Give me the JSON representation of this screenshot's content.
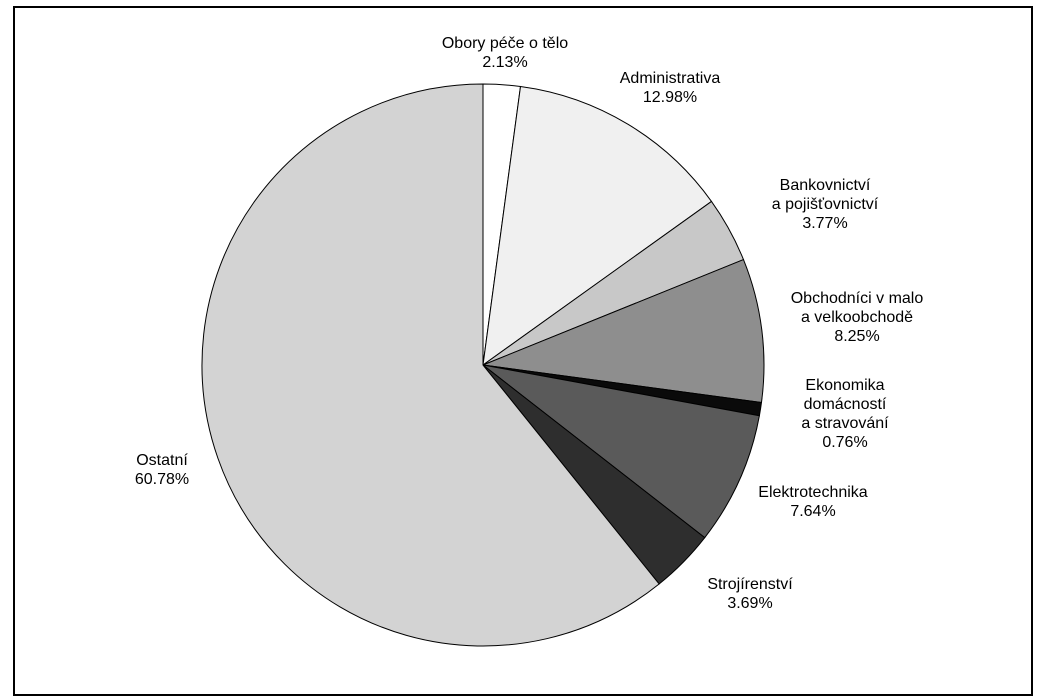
{
  "chart_data": {
    "type": "pie",
    "title": "",
    "start_angle_deg": 0,
    "direction": "clockwise",
    "legend": "none",
    "slices": [
      {
        "label_lines": [
          "Obory péče o tělo"
        ],
        "percent_label": "2.13%",
        "value": 2.13,
        "color": "#ffffff"
      },
      {
        "label_lines": [
          "Administrativa"
        ],
        "percent_label": "12.98%",
        "value": 12.98,
        "color": "#f0f0f0"
      },
      {
        "label_lines": [
          "Bankovnictví",
          "a pojišťovnictví"
        ],
        "percent_label": "3.77%",
        "value": 3.77,
        "color": "#c8c8c8"
      },
      {
        "label_lines": [
          "Obchodníci v malo",
          "a velkoobchodě"
        ],
        "percent_label": "8.25%",
        "value": 8.25,
        "color": "#8e8e8e"
      },
      {
        "label_lines": [
          "Ekonomika",
          "domácností",
          "a stravování"
        ],
        "percent_label": "0.76%",
        "value": 0.76,
        "color": "#0a0a0a"
      },
      {
        "label_lines": [
          "Elektrotechnika"
        ],
        "percent_label": "7.64%",
        "value": 7.64,
        "color": "#5a5a5a"
      },
      {
        "label_lines": [
          "Strojírenství"
        ],
        "percent_label": "3.69%",
        "value": 3.69,
        "color": "#2e2e2e"
      },
      {
        "label_lines": [
          "Ostatní"
        ],
        "percent_label": "60.78%",
        "value": 60.78,
        "color": "#d3d3d3"
      }
    ]
  }
}
